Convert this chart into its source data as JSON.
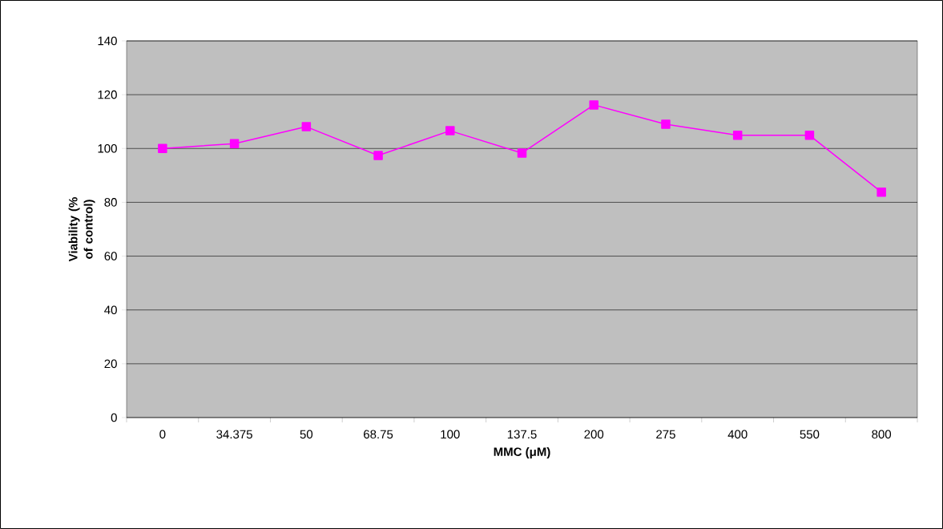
{
  "chart_data": {
    "type": "line",
    "xlabel": "MMC (μM)",
    "ylabel": "Viability (% of control)",
    "categories": [
      "0",
      "34.375",
      "50",
      "68.75",
      "100",
      "137.5",
      "200",
      "275",
      "400",
      "550",
      "800"
    ],
    "series": [
      {
        "color": "#ff00ff",
        "values": [
          100,
          101.8,
          108.1,
          97.4,
          106.6,
          98.3,
          116.2,
          109,
          104.9,
          104.9,
          83.8
        ]
      }
    ],
    "ylim": [
      0,
      140
    ],
    "yticks": [
      0,
      20,
      40,
      60,
      80,
      100,
      120,
      140
    ],
    "grid": "y",
    "marker": "square",
    "line_style": "solid"
  }
}
